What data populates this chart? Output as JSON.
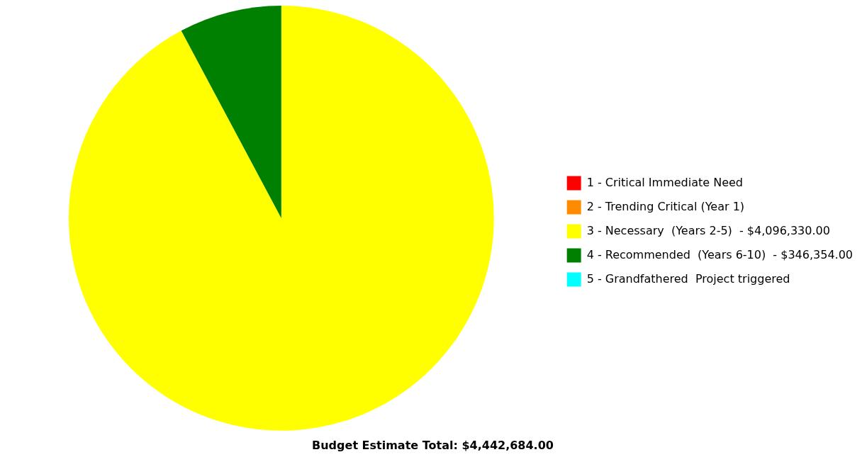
{
  "chart_data": {
    "type": "pie",
    "title": "Budget Estimate Total: $4,442,684.00",
    "categories": [
      "1 - Critical Immediate Need",
      "2 - Trending Critical (Year 1)",
      "3 - Necessary  (Years 2-5)  - $4,096,330.00",
      "4 - Recommended  (Years 6-10)  - $346,354.00",
      "5 - Grandfathered  Project triggered"
    ],
    "values": [
      0,
      0,
      92.2,
      7.8,
      0
    ],
    "colors": [
      "#ff0000",
      "#ff8c00",
      "#ffff00",
      "#008000",
      "#00ffff"
    ],
    "legend": "right"
  }
}
